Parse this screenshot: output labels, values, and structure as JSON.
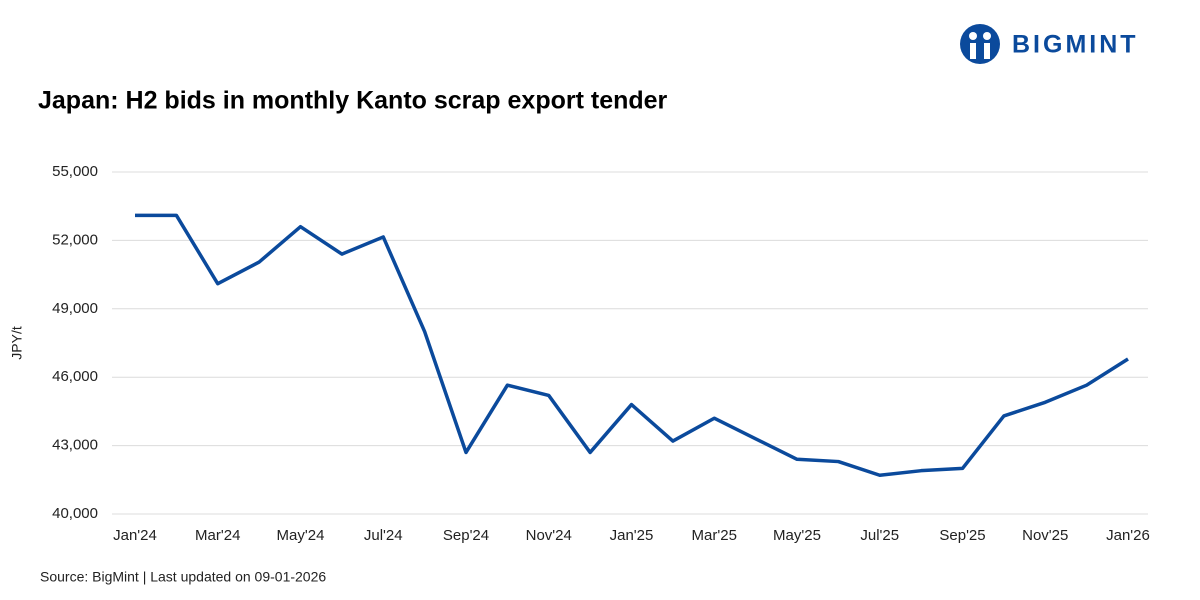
{
  "brand": "BIGMINT",
  "chart_data": {
    "type": "line",
    "title": "Japan: H2 bids in monthly Kanto scrap export tender",
    "y_label": "JPY/t",
    "source": "Source: BigMint | Last updated on 09-01-2026",
    "categories": [
      "Jan'24",
      null,
      "Mar'24",
      null,
      "May'24",
      null,
      "Jul'24",
      null,
      "Sep'24",
      null,
      "Nov'24",
      null,
      "Jan'25",
      null,
      "Mar'25",
      null,
      "May'25",
      null,
      "Jul'25",
      null,
      "Sep'25",
      null,
      "Nov'25",
      null,
      "Jan'26"
    ],
    "series": [
      {
        "color": "#0b4a9c",
        "values": [
          53100,
          53100,
          50100,
          51050,
          52600,
          51400,
          52150,
          48000,
          42700,
          45650,
          45200,
          42700,
          44800,
          43200,
          44200,
          43300,
          42400,
          42300,
          41700,
          41900,
          42000,
          44300,
          44900,
          45650,
          46800
        ]
      }
    ],
    "ylim": [
      40000,
      55000
    ],
    "yticks": [
      {
        "value": 40000,
        "label": "40,000"
      },
      {
        "value": 43000,
        "label": "43,000"
      },
      {
        "value": 46000,
        "label": "46,000"
      },
      {
        "value": 49000,
        "label": "49,000"
      },
      {
        "value": 52000,
        "label": "52,000"
      },
      {
        "value": 55000,
        "label": "55,000"
      }
    ],
    "grid": true
  }
}
